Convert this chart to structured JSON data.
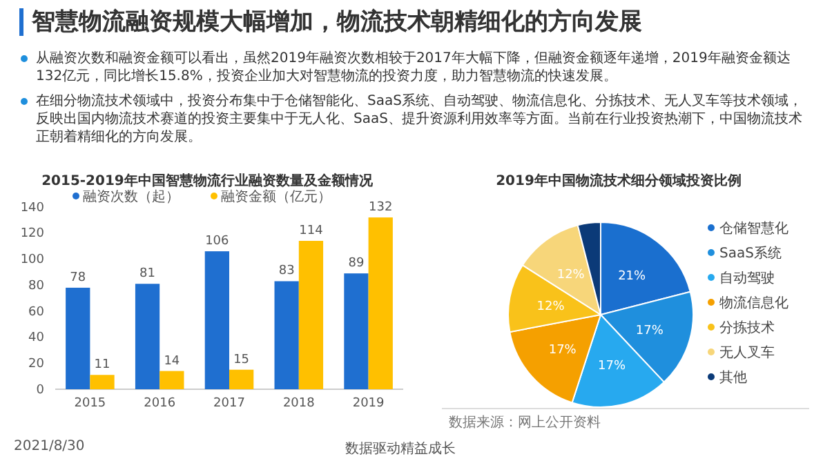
{
  "chart_data": [
    {
      "type": "other",
      "title": "智慧物流融资规模大幅增加，物流技术朝精细化的方向发展",
      "annotations": [
        "从融资次数和融资金额可以看出，虽然2019年融资次数相较于2017年大幅下降，但融资金额逐年递增，2019年融资金额达132亿元，同比增长15.8%，投资企业加大对智慧物流的投资力度，助力智慧物流的快速发展。",
        "在细分物流技术领域中，投资分布集中于仓储智能化、SaaS系统、自动驾驶、物流信息化、分拣技术、无人叉车等技术领域，反映出国内物流技术赛道的投资主要集中于无人化、SaaS、提升资源利用效率等方面。当前在行业投资热潮下，中国物流技术正朝着精细化的方向发展。"
      ]
    },
    {
      "type": "bar",
      "title": "2015-2019年中国智慧物流行业融资数量及金额情况",
      "categories": [
        "2015",
        "2016",
        "2017",
        "2018",
        "2019"
      ],
      "series": [
        {
          "name": "融资次数（起）",
          "color": "#1f6fd0",
          "values": [
            78,
            81,
            106,
            83,
            89
          ]
        },
        {
          "name": "融资金额（亿元）",
          "color": "#ffc000",
          "values": [
            11,
            14,
            15,
            114,
            132
          ]
        }
      ],
      "ylim": [
        0,
        140
      ],
      "yticks": [
        0,
        20,
        40,
        60,
        80,
        100,
        120,
        140
      ],
      "grid": false,
      "legend": "top",
      "data_labels": true
    },
    {
      "type": "pie",
      "title": "2019年中国物流技术细分领域投资比例",
      "categories": [
        "仓储智慧化",
        "SaaS系统",
        "自动驾驶",
        "物流信息化",
        "分拣技术",
        "无人叉车",
        "其他"
      ],
      "values": [
        21,
        17,
        17,
        17,
        12,
        12,
        4
      ],
      "colors": [
        "#1a6fcf",
        "#1f8fdd",
        "#27a9ef",
        "#f5a000",
        "#f9c21a",
        "#f7d67a",
        "#0b3a78"
      ],
      "value_labels": [
        "21%",
        "17%",
        "17%",
        "17%",
        "12%",
        "12%",
        null
      ],
      "legend": "right",
      "annotations": [
        "数据来源：网上公开资料"
      ]
    },
    {
      "type": "other",
      "annotations": [
        "2021/8/30",
        "数据驱动精益成长"
      ]
    }
  ]
}
